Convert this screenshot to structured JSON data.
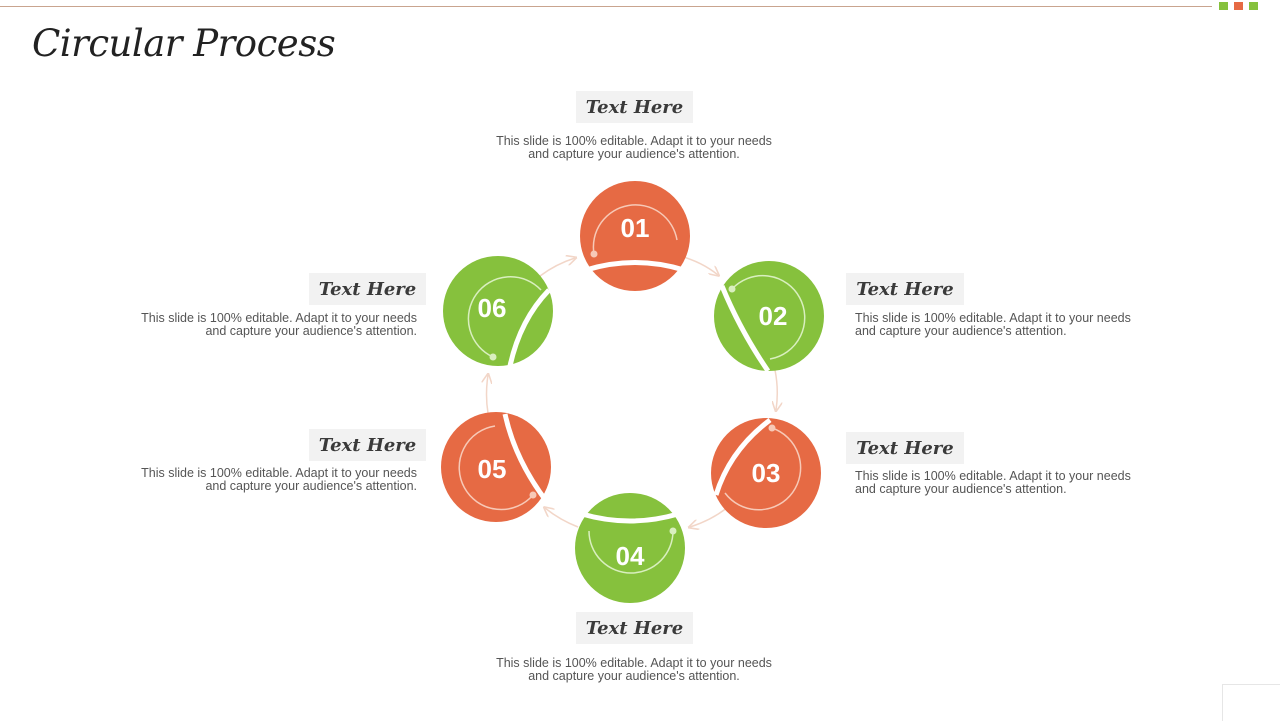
{
  "slide": {
    "title": "Circular Process"
  },
  "colors": {
    "orange": "#e66a44",
    "green": "#86c13d",
    "accent_line": "#c9a48f"
  },
  "steps": [
    {
      "number": "01",
      "color": "orange",
      "heading": "Text Here",
      "desc_line1": "This slide is 100% editable. Adapt it to your needs",
      "desc_line2": "and capture your audience's attention."
    },
    {
      "number": "02",
      "color": "green",
      "heading": "Text Here",
      "desc_line1": "This slide is 100% editable. Adapt it to your needs",
      "desc_line2": "and capture your audience's attention."
    },
    {
      "number": "03",
      "color": "orange",
      "heading": "Text Here",
      "desc_line1": "This slide is 100% editable. Adapt it to your needs",
      "desc_line2": "and capture your audience's attention."
    },
    {
      "number": "04",
      "color": "green",
      "heading": "Text Here",
      "desc_line1": "This slide is 100% editable. Adapt it to your needs",
      "desc_line2": "and capture your audience's attention."
    },
    {
      "number": "05",
      "color": "orange",
      "heading": "Text Here",
      "desc_line1": "This slide is 100% editable. Adapt it to your needs",
      "desc_line2": "and capture your audience's attention."
    },
    {
      "number": "06",
      "color": "green",
      "heading": "Text Here",
      "desc_line1": "This slide is 100% editable. Adapt it to your needs",
      "desc_line2": "and capture your audience's attention."
    }
  ]
}
